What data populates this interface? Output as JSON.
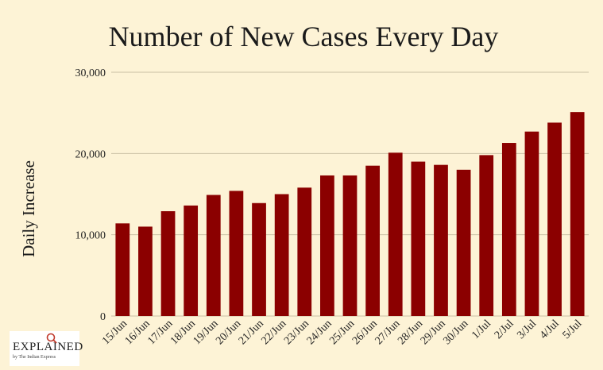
{
  "chart_data": {
    "type": "bar",
    "title": "Number of New Cases Every Day",
    "xlabel": "",
    "ylabel": "Daily Increase",
    "ylim": [
      0,
      30000
    ],
    "yticks": [
      0,
      10000,
      20000,
      30000
    ],
    "ytick_labels": [
      "0",
      "10,000",
      "20,000",
      "30,000"
    ],
    "categories": [
      "15/Jun",
      "16/Jun",
      "17/Jun",
      "18/Jun",
      "19/Jun",
      "20/Jun",
      "21/Jun",
      "22/Jun",
      "23/Jun",
      "24/Jun",
      "25/Jun",
      "26/Jun",
      "27/Jun",
      "28/Jun",
      "29/Jun",
      "30/Jun",
      "1/Jul",
      "2/Jul",
      "3/Jul",
      "4/Jul",
      "5/Jul"
    ],
    "values": [
      11400,
      11000,
      12900,
      13600,
      14900,
      15400,
      13900,
      15000,
      15800,
      17300,
      17300,
      18500,
      20100,
      19000,
      18600,
      18000,
      19800,
      21300,
      22700,
      23800,
      25100
    ],
    "bar_color": "#8b0000",
    "grid": true
  },
  "branding": {
    "logo_text": "EXPLAINED",
    "logo_subtext": "by The Indian Express"
  }
}
